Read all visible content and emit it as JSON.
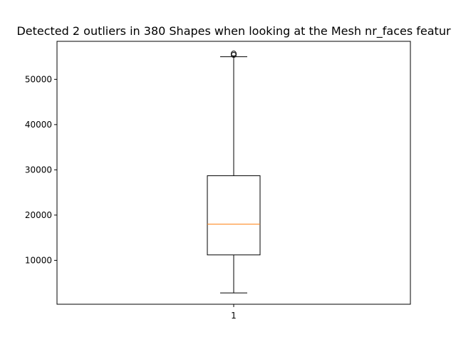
{
  "chart_data": {
    "type": "box",
    "title": "Detected 2 outliers in 380 Shapes when looking at the Mesh nr_faces featur",
    "xlabel": "",
    "ylabel": "",
    "categories": [
      "1"
    ],
    "ylim": [
      300,
      58400
    ],
    "yticks": [
      10000,
      20000,
      30000,
      40000,
      50000
    ],
    "ytick_labels": [
      "10000",
      "20000",
      "30000",
      "40000",
      "50000"
    ],
    "box": {
      "whisker_low": 2800,
      "q1": 11200,
      "median": 18000,
      "q3": 28700,
      "whisker_high": 55000
    },
    "outliers": [
      55400,
      55700
    ],
    "grid": false,
    "colors": {
      "median": "#ff7f0e",
      "box": "#000000"
    }
  }
}
